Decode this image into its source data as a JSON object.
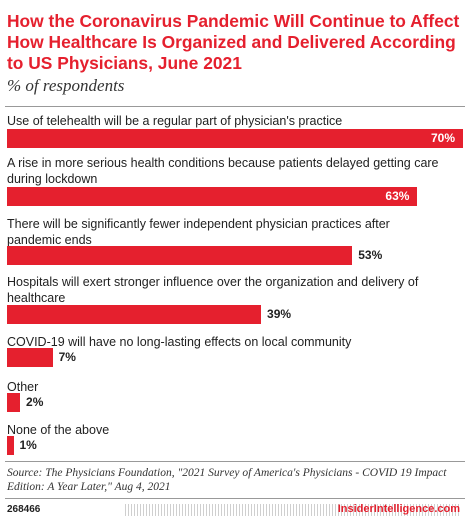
{
  "header": {
    "title": "How the Coronavirus Pandemic Will Continue to Affect How Healthcare Is Organized and Delivered According to US Physicians, June 2021",
    "subtitle": "% of respondents"
  },
  "chart_data": {
    "type": "bar",
    "orientation": "horizontal",
    "title": "How the Coronavirus Pandemic Will Continue to Affect How Healthcare Is Organized and Delivered According to US Physicians, June 2021",
    "subtitle": "% of respondents",
    "categories": [
      "Use of telehealth will be a regular part of physician's practice",
      "A rise in more serious health conditions because patients delayed getting care during lockdown",
      "There will be significantly fewer independent physician practices after pandemic ends",
      "Hospitals will exert stronger influence over the organization and delivery of healthcare",
      "COVID-19 will have no long-lasting effects on local community",
      "Other",
      "None of the above"
    ],
    "values": [
      70,
      63,
      53,
      39,
      7,
      2,
      1
    ],
    "value_labels": [
      "70%",
      "63%",
      "53%",
      "39%",
      "7%",
      "2%",
      "1%"
    ],
    "xlim": [
      0,
      70
    ],
    "bar_color": "#e5202e",
    "grid": false
  },
  "footer": {
    "source": "Source: The Physicians Foundation, \"2021 Survey of America's Physicians - COVID 19 Impact Edition: A Year Later,\" Aug 4, 2021",
    "chart_id": "268466",
    "brand": "InsiderIntelligence.com"
  }
}
